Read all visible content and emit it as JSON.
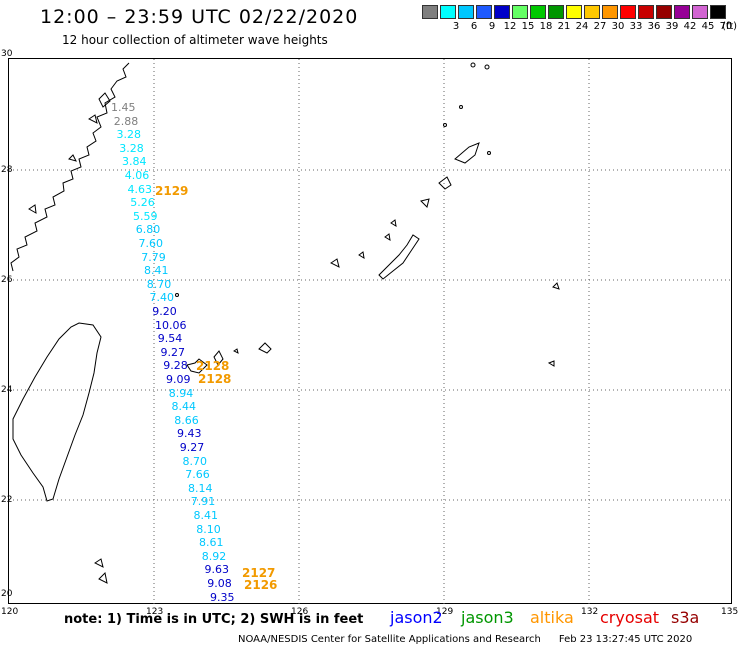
{
  "header": {
    "title": "12:00 – 23:59 UTC 02/22/2020",
    "subtitle": "12 hour collection of altimeter wave heights"
  },
  "legend": {
    "unit": "(ft)",
    "items": [
      {
        "label": "",
        "color": "#7f7f7f"
      },
      {
        "label": "3",
        "color": "#00ffff"
      },
      {
        "label": "6",
        "color": "#00c8ff"
      },
      {
        "label": "9",
        "color": "#1e5aff"
      },
      {
        "label": "12",
        "color": "#0000c8"
      },
      {
        "label": "15",
        "color": "#64ff64"
      },
      {
        "label": "18",
        "color": "#00c800"
      },
      {
        "label": "21",
        "color": "#009600"
      },
      {
        "label": "24",
        "color": "#ffff00"
      },
      {
        "label": "27",
        "color": "#ffc800"
      },
      {
        "label": "30",
        "color": "#ff9600"
      },
      {
        "label": "33",
        "color": "#ff0000"
      },
      {
        "label": "36",
        "color": "#c80000"
      },
      {
        "label": "39",
        "color": "#960000"
      },
      {
        "label": "42",
        "color": "#960096"
      },
      {
        "label": "45",
        "color": "#d264d2"
      },
      {
        "label": "70",
        "color": "#000000"
      }
    ]
  },
  "map": {
    "lon_labels": [
      "120",
      "123",
      "126",
      "129",
      "132",
      "135"
    ],
    "lat_labels": [
      "30",
      "28",
      "26",
      "24",
      "22",
      "20"
    ],
    "orbit_labels": [
      "2129",
      "2128",
      "2128",
      "2127",
      "2126"
    ],
    "wave_heights": [
      {
        "value": "1.45",
        "color": "#7f7f7f"
      },
      {
        "value": "2.88",
        "color": "#7f7f7f"
      },
      {
        "value": "3.28",
        "color": "#00e6ff"
      },
      {
        "value": "3.28",
        "color": "#00e6ff"
      },
      {
        "value": "3.84",
        "color": "#00e6ff"
      },
      {
        "value": "4.06",
        "color": "#00e6ff"
      },
      {
        "value": "4.63",
        "color": "#00e6ff"
      },
      {
        "value": "5.26",
        "color": "#00e6ff"
      },
      {
        "value": "5.59",
        "color": "#00e6ff"
      },
      {
        "value": "6.80",
        "color": "#00c8ff"
      },
      {
        "value": "7.60",
        "color": "#00c8ff"
      },
      {
        "value": "7.79",
        "color": "#00c8ff"
      },
      {
        "value": "8.41",
        "color": "#00c8ff"
      },
      {
        "value": "8.70",
        "color": "#00c8ff"
      },
      {
        "value": "7.40",
        "color": "#00c8ff"
      },
      {
        "value": "9.20",
        "color": "#0000c8"
      },
      {
        "value": "10.06",
        "color": "#0000c8"
      },
      {
        "value": "9.54",
        "color": "#0000c8"
      },
      {
        "value": "9.27",
        "color": "#0000c8"
      },
      {
        "value": "9.28",
        "color": "#0000c8"
      },
      {
        "value": "9.09",
        "color": "#0000c8"
      },
      {
        "value": "8.94",
        "color": "#00c8ff"
      },
      {
        "value": "8.44",
        "color": "#00c8ff"
      },
      {
        "value": "8.66",
        "color": "#00c8ff"
      },
      {
        "value": "9.43",
        "color": "#0000c8"
      },
      {
        "value": "9.27",
        "color": "#0000c8"
      },
      {
        "value": "8.70",
        "color": "#00c8ff"
      },
      {
        "value": "7.66",
        "color": "#00c8ff"
      },
      {
        "value": "8.14",
        "color": "#00c8ff"
      },
      {
        "value": "7.91",
        "color": "#00c8ff"
      },
      {
        "value": "8.41",
        "color": "#00c8ff"
      },
      {
        "value": "8.10",
        "color": "#00c8ff"
      },
      {
        "value": "8.61",
        "color": "#00c8ff"
      },
      {
        "value": "8.92",
        "color": "#00c8ff"
      },
      {
        "value": "9.63",
        "color": "#0000c8"
      },
      {
        "value": "9.08",
        "color": "#0000c8"
      },
      {
        "value": "9.35",
        "color": "#0000c8"
      }
    ]
  },
  "footer": {
    "note": "note:  1) Time is in UTC;  2) SWH is in feet",
    "satellites": [
      {
        "name": "jason2",
        "color": "#0000ff"
      },
      {
        "name": "jason3",
        "color": "#009600"
      },
      {
        "name": "altika",
        "color": "#ff9600"
      },
      {
        "name": "cryosat",
        "color": "#e60000"
      },
      {
        "name": "s3a",
        "color": "#960000"
      }
    ],
    "credit": "NOAA/NESDIS Center for Satellite Applications and Research",
    "timestamp": "Feb 23 13:27:45 UTC 2020"
  }
}
